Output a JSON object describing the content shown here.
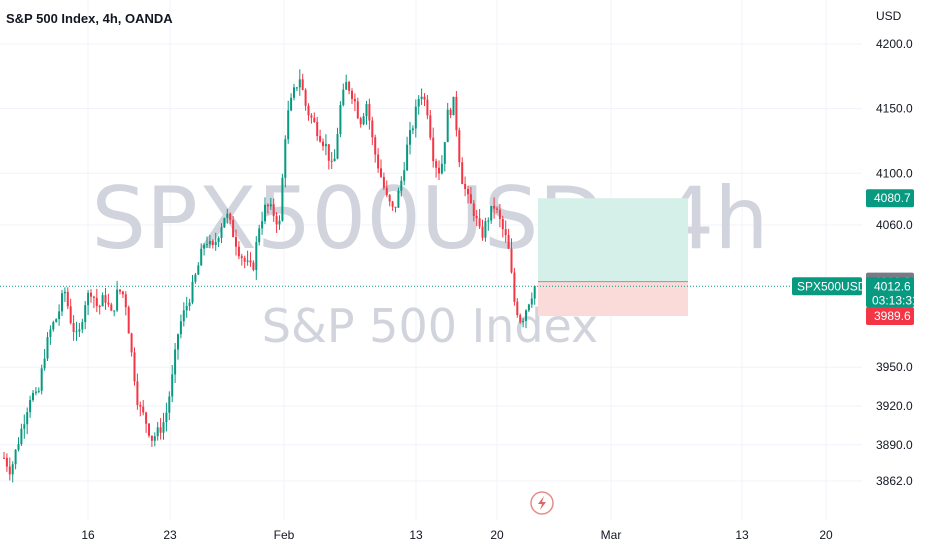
{
  "header": {
    "title": "S&P 500 Index, 4h, OANDA"
  },
  "watermark": {
    "symbol_line": "SPX500USD, 4h",
    "name_line": "S&P 500 Index"
  },
  "price_scale": {
    "currency": "USD",
    "ticks": [
      "4200.0",
      "4150.0",
      "4100.0",
      "4060.0",
      "3950.0",
      "3920.0",
      "3890.0",
      "3862.0"
    ],
    "tick_values": [
      4200,
      4150,
      4100,
      4060,
      3950,
      3920,
      3890,
      3862
    ]
  },
  "time_scale": {
    "labels": [
      "16",
      "23",
      "Feb",
      "13",
      "20",
      "Mar",
      "13",
      "20"
    ]
  },
  "badges": {
    "target": {
      "text": "4080.7",
      "value": 4080.7,
      "color": "#089981"
    },
    "last_close": {
      "text": "4016.2",
      "value": 4016.2,
      "color": "#787b86"
    },
    "symbol": {
      "text": "SPX500USD",
      "color": "#089981"
    },
    "current": {
      "text": "4012.6",
      "countdown": "03:13:31",
      "value": 4012.6,
      "color": "#089981"
    },
    "stop": {
      "text": "3989.6",
      "value": 3989.6,
      "color": "#f23645"
    }
  },
  "position_tool": {
    "entry": 4016.2,
    "target": 4080.7,
    "stop": 3989.6
  },
  "icons": {
    "bottom_center": "lightning-icon"
  },
  "colors": {
    "up": "#089981",
    "down": "#f23645",
    "profit_zone": "#d5efe9",
    "loss_zone": "#fbdada"
  },
  "chart_data": {
    "type": "candlestick",
    "title": "S&P 500 Index, 4h, OANDA",
    "y_unit": "USD",
    "ylim": [
      3835,
      4235
    ],
    "x_labels": [
      "16",
      "23",
      "Feb",
      "13",
      "20",
      "Mar",
      "13",
      "20"
    ],
    "grid": true,
    "series": [
      {
        "name": "SPX500USD",
        "path": [
          3880,
          3870,
          3890,
          3910,
          3930,
          3925,
          3960,
          3980,
          3990,
          4010,
          3985,
          3970,
          4000,
          4010,
          3995,
          4005,
          3990,
          4010,
          4005,
          3960,
          3920,
          3910,
          3895,
          3900,
          3910,
          3940,
          3980,
          3995,
          4010,
          4030,
          4050,
          4040,
          4055,
          4070,
          4055,
          4040,
          4030,
          4025,
          4060,
          4075,
          4070,
          4060,
          4140,
          4160,
          4175,
          4150,
          4140,
          4130,
          4120,
          4100,
          4150,
          4170,
          4160,
          4140,
          4155,
          4120,
          4100,
          4080,
          4070,
          4090,
          4120,
          4140,
          4165,
          4150,
          4110,
          4100,
          4145,
          4155,
          4100,
          4080,
          4070,
          4050,
          4065,
          4075,
          4060,
          4045,
          4000,
          3985,
          4000,
          4012.6
        ]
      }
    ]
  }
}
